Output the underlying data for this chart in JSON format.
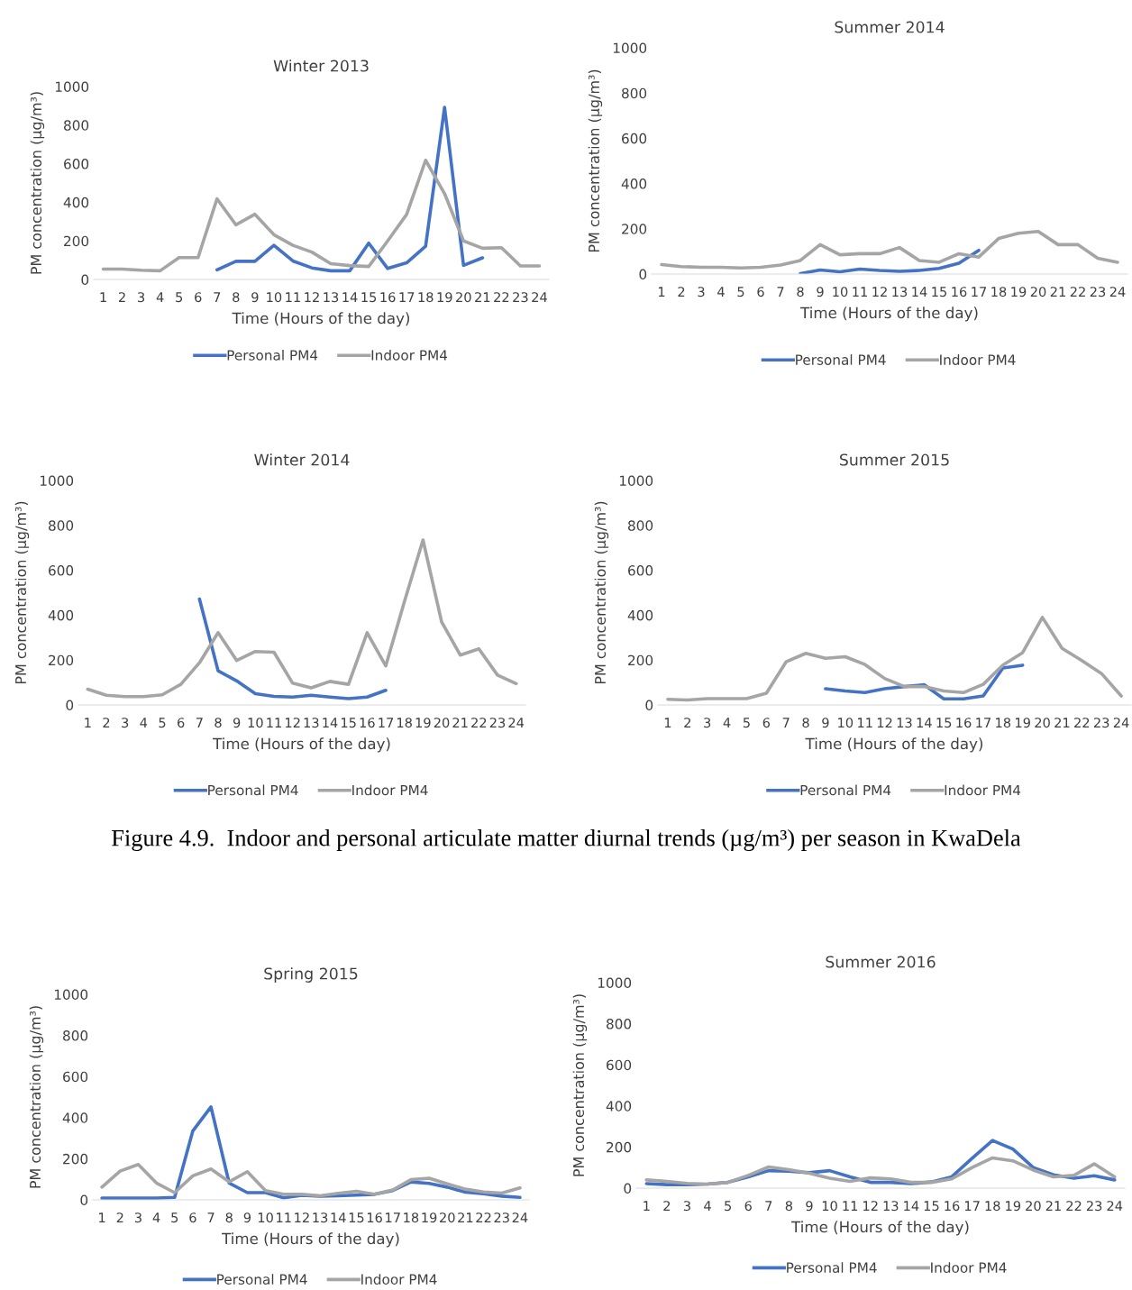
{
  "chart_data": [
    {
      "type": "line",
      "title": "Winter 2013",
      "xlabel": "Time (Hours of the day)",
      "ylabel": "PM concentration (µg/m³)",
      "categories": [
        "1",
        "2",
        "3",
        "4",
        "5",
        "6",
        "7",
        "8",
        "9",
        "10",
        "11",
        "12",
        "13",
        "14",
        "15",
        "16",
        "17",
        "18",
        "19",
        "20",
        "21",
        "22",
        "23",
        "24"
      ],
      "ylim": [
        0,
        1000
      ],
      "yticks": [
        0,
        200,
        400,
        600,
        800,
        1000
      ],
      "grid": false,
      "legend": "bottom",
      "marker": "none",
      "line_style": "solid",
      "series": [
        {
          "name": "Personal PM4",
          "color": "#4472c4",
          "values": [
            null,
            null,
            null,
            null,
            null,
            null,
            50,
            94,
            94,
            177,
            96,
            60,
            45,
            45,
            188,
            57,
            86,
            172,
            892,
            73,
            112,
            null,
            null,
            null
          ]
        },
        {
          "name": "Indoor PM4",
          "color": "#a5a5a5",
          "values": [
            54,
            54,
            48,
            45,
            113,
            113,
            418,
            283,
            338,
            232,
            177,
            142,
            82,
            72,
            67,
            200,
            337,
            618,
            445,
            200,
            162,
            165,
            70,
            70
          ]
        }
      ]
    },
    {
      "type": "line",
      "title": "Summer 2014",
      "xlabel": "Time (Hours of the day)",
      "ylabel": "PM concentration (µg/m³)",
      "categories": [
        "1",
        "2",
        "3",
        "4",
        "5",
        "6",
        "7",
        "8",
        "9",
        "10",
        "11",
        "12",
        "13",
        "14",
        "15",
        "16",
        "17",
        "18",
        "19",
        "20",
        "21",
        "22",
        "23",
        "24"
      ],
      "ylim": [
        0,
        1000
      ],
      "yticks": [
        0,
        200,
        400,
        600,
        800,
        1000
      ],
      "grid": false,
      "legend": "bottom",
      "marker": "none",
      "line_style": "solid",
      "series": [
        {
          "name": "Personal PM4",
          "color": "#4472c4",
          "values": [
            null,
            null,
            null,
            null,
            null,
            null,
            null,
            2,
            18,
            10,
            22,
            16,
            12,
            16,
            25,
            48,
            105,
            null,
            null,
            null,
            null,
            null,
            null,
            null
          ]
        },
        {
          "name": "Indoor PM4",
          "color": "#a5a5a5",
          "values": [
            42,
            33,
            30,
            30,
            27,
            30,
            40,
            60,
            130,
            85,
            90,
            90,
            117,
            60,
            52,
            90,
            75,
            157,
            180,
            188,
            130,
            130,
            70,
            52
          ]
        }
      ]
    },
    {
      "type": "line",
      "title": "Winter 2014",
      "xlabel": "Time (Hours of the day)",
      "ylabel": "PM concentration (µg/m³)",
      "categories": [
        "1",
        "2",
        "3",
        "4",
        "5",
        "6",
        "7",
        "8",
        "9",
        "10",
        "11",
        "12",
        "13",
        "14",
        "15",
        "16",
        "17",
        "18",
        "19",
        "20",
        "21",
        "22",
        "23",
        "24"
      ],
      "ylim": [
        0,
        1000
      ],
      "yticks": [
        0,
        200,
        400,
        600,
        800,
        1000
      ],
      "grid": false,
      "legend": "bottom",
      "marker": "none",
      "line_style": "solid",
      "series": [
        {
          "name": "Personal PM4",
          "color": "#4472c4",
          "values": [
            null,
            null,
            null,
            null,
            null,
            null,
            472,
            152,
            107,
            50,
            38,
            35,
            43,
            35,
            28,
            35,
            65,
            null,
            null,
            null,
            null,
            null,
            null,
            null
          ]
        },
        {
          "name": "Indoor PM4",
          "color": "#a5a5a5",
          "values": [
            70,
            43,
            37,
            37,
            45,
            92,
            188,
            322,
            198,
            238,
            235,
            97,
            76,
            105,
            92,
            322,
            174,
            460,
            735,
            370,
            222,
            250,
            133,
            95
          ]
        }
      ]
    },
    {
      "type": "line",
      "title": "Summer 2015",
      "xlabel": "Time (Hours of the day)",
      "ylabel": "PM concentration (µg/m³)",
      "categories": [
        "1",
        "2",
        "3",
        "4",
        "5",
        "6",
        "7",
        "8",
        "9",
        "10",
        "11",
        "12",
        "13",
        "14",
        "15",
        "16",
        "17",
        "18",
        "19",
        "20",
        "21",
        "22",
        "23",
        "24"
      ],
      "ylim": [
        0,
        1000
      ],
      "yticks": [
        0,
        200,
        400,
        600,
        800,
        1000
      ],
      "grid": false,
      "legend": "bottom",
      "marker": "none",
      "line_style": "solid",
      "annotations": [
        "Figure 4.9.  Indoor and personal articulate matter diurnal trends (µg/m³) per season in KwaDela"
      ],
      "series": [
        {
          "name": "Personal PM4",
          "color": "#4472c4",
          "values": [
            null,
            null,
            null,
            null,
            null,
            null,
            null,
            null,
            72,
            62,
            55,
            72,
            82,
            90,
            27,
            27,
            40,
            165,
            177,
            null,
            null,
            null,
            null,
            null
          ]
        },
        {
          "name": "Indoor PM4",
          "color": "#a5a5a5",
          "values": [
            25,
            22,
            28,
            28,
            28,
            52,
            192,
            230,
            208,
            215,
            180,
            118,
            82,
            82,
            62,
            55,
            92,
            178,
            233,
            390,
            252,
            198,
            140,
            40
          ]
        }
      ]
    },
    {
      "type": "line",
      "title": "Spring 2015",
      "xlabel": "Time (Hours of the day)",
      "ylabel": "PM concentration (µg/m³)",
      "categories": [
        "1",
        "2",
        "3",
        "4",
        "5",
        "6",
        "7",
        "8",
        "9",
        "10",
        "11",
        "12",
        "13",
        "14",
        "15",
        "16",
        "17",
        "18",
        "19",
        "20",
        "21",
        "22",
        "23",
        "24"
      ],
      "ylim": [
        0,
        1000
      ],
      "yticks": [
        0,
        200,
        400,
        600,
        800,
        1000
      ],
      "grid": false,
      "legend": "bottom",
      "marker": "none",
      "line_style": "solid",
      "series": [
        {
          "name": "Personal PM4",
          "color": "#4472c4",
          "values": [
            8,
            8,
            8,
            8,
            12,
            335,
            452,
            82,
            35,
            35,
            10,
            22,
            18,
            20,
            23,
            27,
            45,
            87,
            80,
            62,
            37,
            30,
            18,
            12
          ]
        },
        {
          "name": "Indoor PM4",
          "color": "#a5a5a5",
          "values": [
            62,
            140,
            172,
            82,
            35,
            117,
            150,
            88,
            137,
            45,
            27,
            27,
            20,
            32,
            42,
            27,
            48,
            98,
            105,
            78,
            52,
            38,
            33,
            58
          ]
        }
      ]
    },
    {
      "type": "line",
      "title": "Summer 2016",
      "xlabel": "Time (Hours of the day)",
      "ylabel": "PM concentration (µg/m³)",
      "categories": [
        "1",
        "2",
        "3",
        "4",
        "5",
        "6",
        "7",
        "8",
        "9",
        "10",
        "11",
        "12",
        "13",
        "14",
        "15",
        "16",
        "17",
        "18",
        "19",
        "20",
        "21",
        "22",
        "23",
        "24"
      ],
      "ylim": [
        0,
        1000
      ],
      "yticks": [
        0,
        200,
        400,
        600,
        800,
        1000
      ],
      "grid": false,
      "legend": "bottom",
      "marker": "none",
      "line_style": "solid",
      "series": [
        {
          "name": "Personal PM4",
          "color": "#4472c4",
          "values": [
            22,
            17,
            17,
            20,
            28,
            55,
            85,
            82,
            75,
            85,
            55,
            28,
            28,
            22,
            30,
            55,
            145,
            232,
            190,
            100,
            65,
            48,
            60,
            40
          ]
        },
        {
          "name": "Indoor PM4",
          "color": "#a5a5a5",
          "values": [
            40,
            33,
            23,
            20,
            28,
            62,
            103,
            90,
            72,
            48,
            33,
            50,
            45,
            28,
            28,
            45,
            100,
            147,
            133,
            88,
            55,
            62,
            118,
            55
          ]
        }
      ]
    }
  ]
}
